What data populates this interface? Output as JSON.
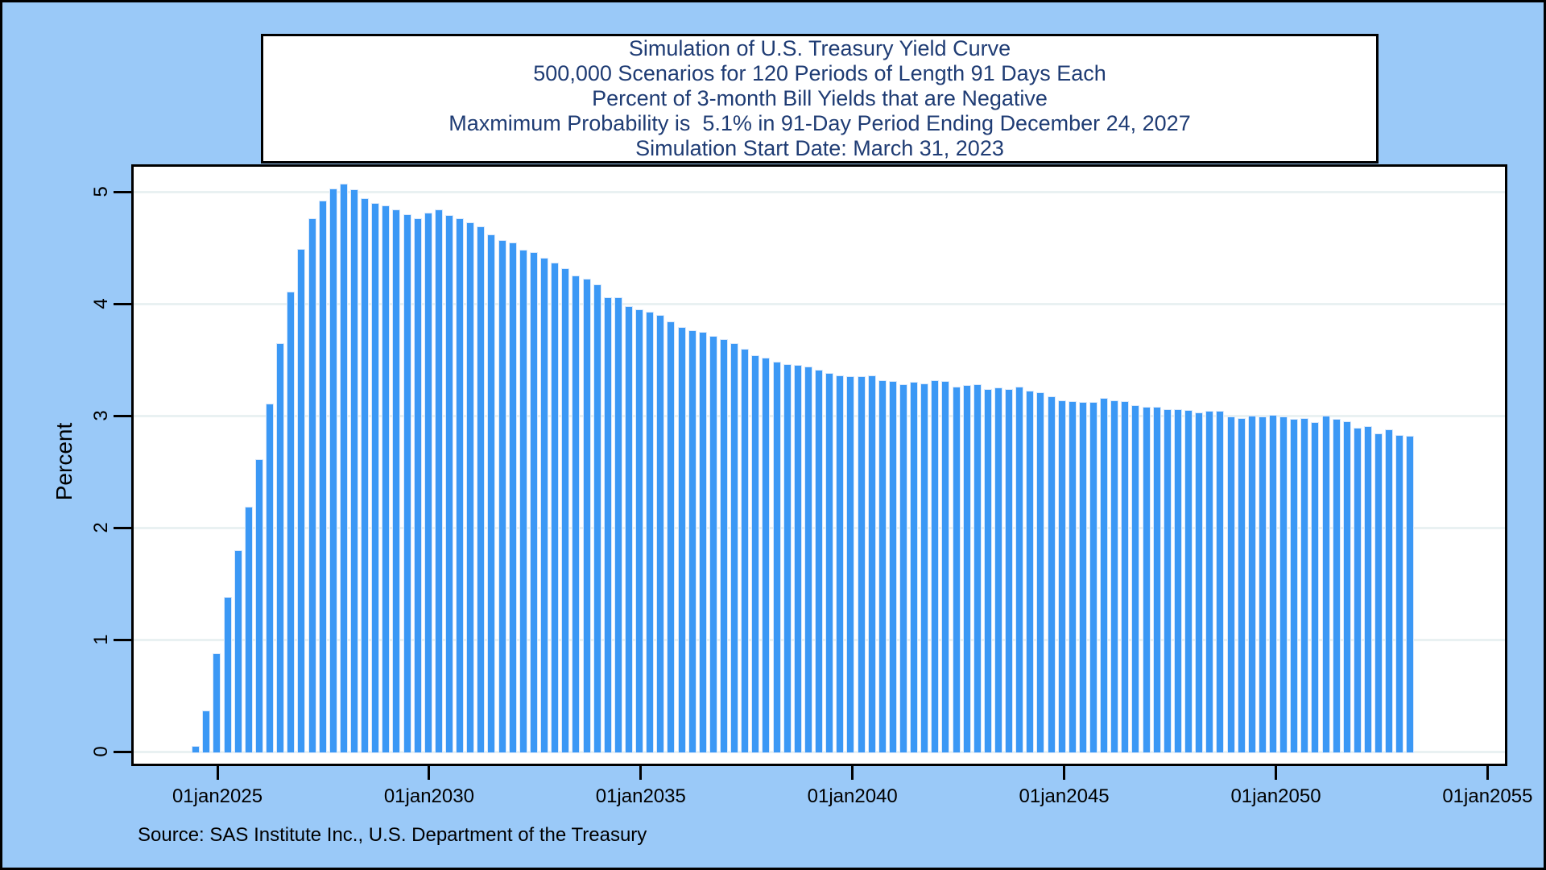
{
  "title_box": {
    "lines": [
      "Simulation of U.S. Treasury Yield Curve",
      "500,000 Scenarios for 120 Periods of Length 91 Days Each",
      "Percent of 3-month Bill Yields that are Negative",
      "Maxmimum Probability is  5.1% in 91-Day Period Ending December 24, 2027",
      "Simulation Start Date: March 31, 2023"
    ]
  },
  "source": "Source: SAS Institute Inc., U.S. Department of the Treasury",
  "chart_data": {
    "type": "bar",
    "title": "Simulation of U.S. Treasury Yield Curve",
    "subtitle_lines": [
      "500,000 Scenarios for 120 Periods of Length 91 Days Each",
      "Percent of 3-month Bill Yields that are Negative",
      "Maxmimum Probability is  5.1% in 91-Day Period Ending December 24, 2027",
      "Simulation Start Date: March 31, 2023"
    ],
    "ylabel": "Percent",
    "ylim": [
      0,
      5.2
    ],
    "y_ticks": [
      0,
      1,
      2,
      3,
      4,
      5
    ],
    "x_tick_labels": [
      "01jan2025",
      "01jan2030",
      "01jan2035",
      "01jan2040",
      "01jan2045",
      "01jan2050",
      "01jan2055"
    ],
    "periods": 120,
    "period_length_days": 91,
    "start_date_label": "March 31, 2023",
    "peak": {
      "value_pct": 5.1,
      "period_ending_label": "December 24, 2027"
    },
    "values": [
      0,
      0,
      0,
      0,
      0.05,
      0.37,
      0.88,
      1.38,
      1.8,
      2.19,
      2.61,
      3.11,
      3.65,
      4.11,
      4.49,
      4.76,
      4.92,
      5.03,
      5.07,
      5.02,
      4.94,
      4.9,
      4.88,
      4.84,
      4.8,
      4.76,
      4.81,
      4.84,
      4.79,
      4.76,
      4.73,
      4.69,
      4.62,
      4.57,
      4.55,
      4.48,
      4.46,
      4.41,
      4.37,
      4.32,
      4.25,
      4.22,
      4.17,
      4.06,
      4.06,
      3.98,
      3.95,
      3.93,
      3.9,
      3.84,
      3.79,
      3.76,
      3.75,
      3.71,
      3.68,
      3.65,
      3.6,
      3.54,
      3.52,
      3.48,
      3.46,
      3.45,
      3.44,
      3.41,
      3.38,
      3.36,
      3.35,
      3.35,
      3.36,
      3.32,
      3.31,
      3.28,
      3.3,
      3.29,
      3.32,
      3.31,
      3.26,
      3.27,
      3.28,
      3.24,
      3.25,
      3.24,
      3.26,
      3.22,
      3.21,
      3.17,
      3.14,
      3.13,
      3.12,
      3.12,
      3.16,
      3.14,
      3.13,
      3.09,
      3.08,
      3.08,
      3.06,
      3.06,
      3.05,
      3.03,
      3.04,
      3.04,
      2.99,
      2.98,
      3.0,
      2.99,
      3.01,
      2.99,
      2.97,
      2.98,
      2.94,
      3.0,
      2.97,
      2.95,
      2.89,
      2.91,
      2.84,
      2.88,
      2.83,
      2.82
    ],
    "grid": true,
    "legend": false,
    "colors": {
      "bar_fill": "#3B98F5",
      "bar_outline": "#D9E8FB",
      "canvas_background": "#9AC9F8",
      "plot_background": "#FFFFFF",
      "title_text": "#1F3C74",
      "axis_text": "#000000",
      "gridline": "#E9F1F2",
      "frame": "#000000"
    }
  }
}
